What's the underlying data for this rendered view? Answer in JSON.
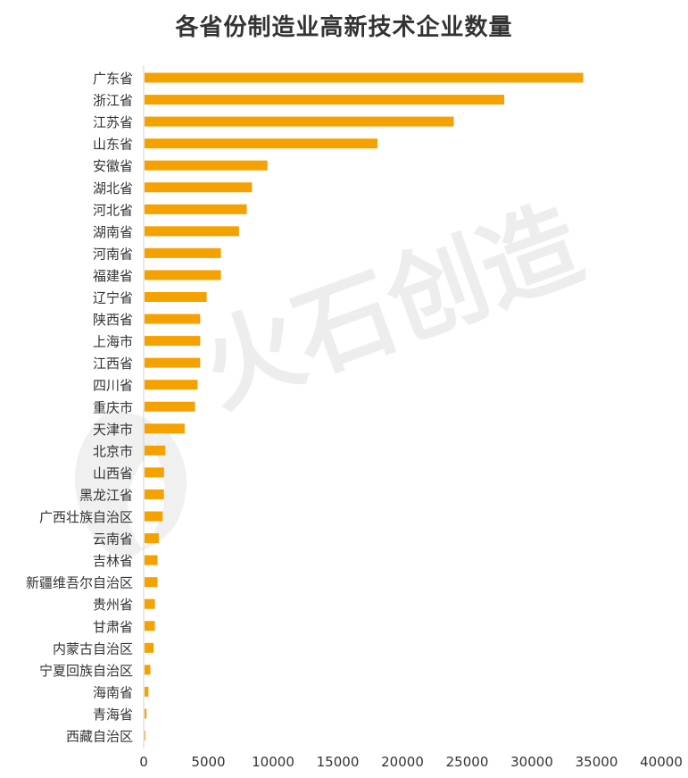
{
  "chart_data": {
    "type": "bar",
    "orientation": "horizontal",
    "title": "各省份制造业高新技术企业数量",
    "xlabel": "",
    "ylabel": "",
    "xlim": [
      0,
      40000
    ],
    "xticks": [
      "0",
      "5000",
      "10000",
      "15000",
      "20000",
      "25000",
      "30000",
      "35000",
      "40000"
    ],
    "grid": false,
    "legend": "none",
    "bar_color": "#F5A100",
    "categories": [
      "广东省",
      "浙江省",
      "江苏省",
      "山东省",
      "安徽省",
      "湖北省",
      "河北省",
      "湖南省",
      "河南省",
      "福建省",
      "辽宁省",
      "陕西省",
      "上海市",
      "江西省",
      "四川省",
      "重庆市",
      "天津市",
      "北京市",
      "山西省",
      "黑龙江省",
      "广西壮族自治区",
      "云南省",
      "吉林省",
      "新疆维吾尔自治区",
      "贵州省",
      "甘肃省",
      "内蒙古自治区",
      "宁夏回族自治区",
      "海南省",
      "青海省",
      "西藏自治区"
    ],
    "values": [
      33900,
      27800,
      23900,
      18000,
      9500,
      8300,
      7900,
      7300,
      5900,
      5900,
      4800,
      4300,
      4300,
      4300,
      4100,
      3900,
      3100,
      1600,
      1500,
      1500,
      1400,
      1100,
      1000,
      1000,
      800,
      800,
      700,
      450,
      300,
      150,
      60
    ]
  },
  "watermark": {
    "text": "火石创造"
  }
}
